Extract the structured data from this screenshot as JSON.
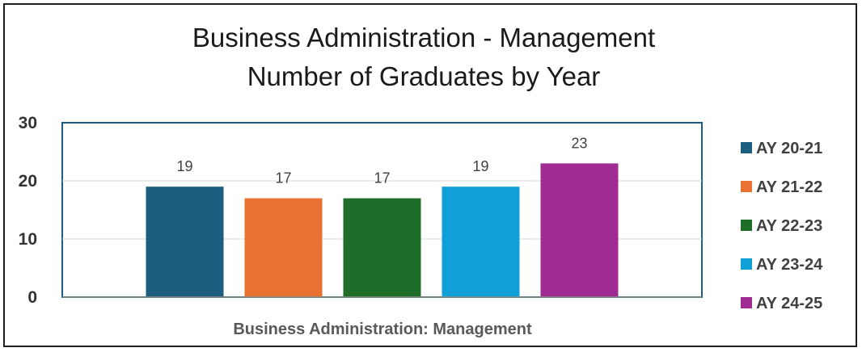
{
  "chart_data": {
    "type": "bar",
    "title": [
      "Business Administration - Management",
      "Number of Graduates by Year"
    ],
    "xlabel": "Business Administration: Management",
    "ylabel": "",
    "ylim": [
      0,
      30
    ],
    "yticks": [
      0,
      10,
      20,
      30
    ],
    "grid": true,
    "legend_position": "right",
    "categories": [
      "Business Administration: Management"
    ],
    "series": [
      {
        "name": "AY 20-21",
        "values": [
          19
        ],
        "color": "#1b5e80"
      },
      {
        "name": "AY 21-22",
        "values": [
          17
        ],
        "color": "#e97132"
      },
      {
        "name": "AY 22-23",
        "values": [
          17
        ],
        "color": "#1e6e2a"
      },
      {
        "name": "AY 23-24",
        "values": [
          19
        ],
        "color": "#119fd8"
      },
      {
        "name": "AY 24-25",
        "values": [
          23
        ],
        "color": "#a02b93"
      }
    ]
  }
}
